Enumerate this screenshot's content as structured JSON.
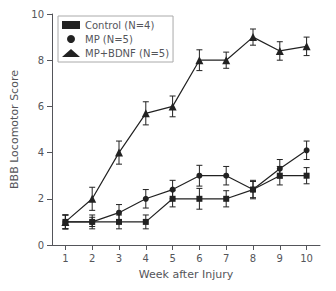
{
  "chart_data": {
    "type": "line",
    "xlabel": "Week after Injury",
    "ylabel": "BBB Locomotor Score",
    "x": [
      1,
      2,
      3,
      4,
      5,
      6,
      7,
      8,
      9,
      10
    ],
    "series": [
      {
        "name": "Control (N=4)",
        "color": "#222222",
        "marker": "square",
        "line_style": "solid",
        "values": [
          1.0,
          1.0,
          1.0,
          1.0,
          2.0,
          2.0,
          2.0,
          2.4,
          3.0,
          3.0
        ],
        "errors": [
          0.3,
          0.2,
          0.3,
          0.3,
          0.35,
          0.45,
          0.35,
          0.4,
          0.4,
          0.35
        ]
      },
      {
        "name": "MP (N=5)",
        "color": "#222222",
        "marker": "circle",
        "line_style": "solid",
        "values": [
          1.0,
          1.0,
          1.4,
          2.0,
          2.4,
          3.0,
          3.0,
          2.4,
          3.3,
          4.1
        ],
        "errors": [
          0.3,
          0.3,
          0.35,
          0.4,
          0.4,
          0.45,
          0.4,
          0.35,
          0.4,
          0.4
        ]
      },
      {
        "name": "MP+BDNF (N=5)",
        "color": "#222222",
        "marker": "triangle",
        "line_style": "solid",
        "values": [
          1.0,
          2.0,
          4.0,
          5.7,
          6.0,
          8.0,
          8.0,
          9.0,
          8.4,
          8.6
        ],
        "errors": [
          0.3,
          0.5,
          0.5,
          0.5,
          0.45,
          0.45,
          0.35,
          0.35,
          0.4,
          0.4
        ]
      }
    ],
    "xlim": [
      0.5,
      10.5
    ],
    "ylim": [
      0,
      10
    ],
    "xticks": [
      1,
      2,
      3,
      4,
      5,
      6,
      7,
      8,
      9,
      10
    ],
    "yticks": [
      0,
      2,
      4,
      6,
      8,
      10
    ],
    "grid": false,
    "legend": "upper left"
  }
}
